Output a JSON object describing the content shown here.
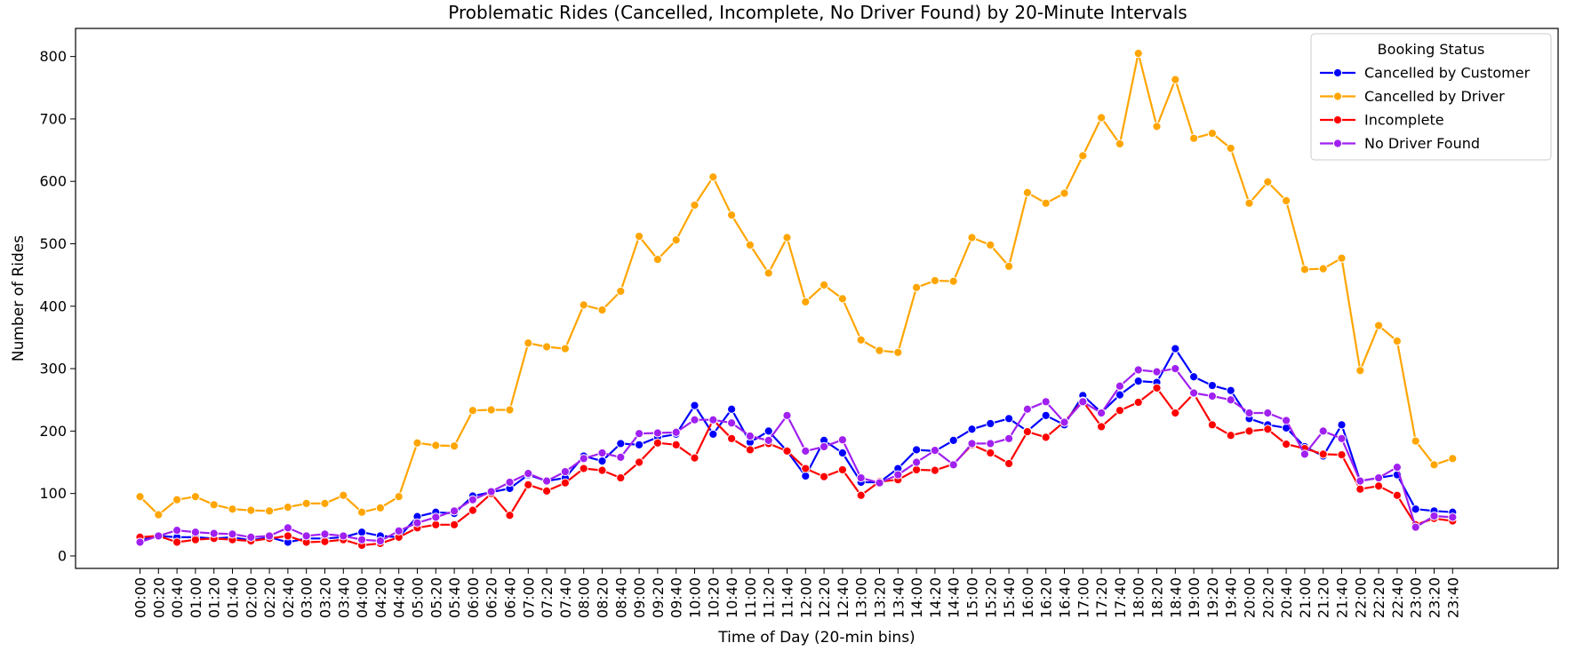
{
  "chart_data": {
    "type": "line",
    "title": "Problematic Rides (Cancelled, Incomplete, No Driver Found) by 20-Minute Intervals",
    "xlabel": "Time of Day (20-min bins)",
    "ylabel": "Number of Rides",
    "ylim": [
      -20,
      845
    ],
    "yticks": [
      0,
      100,
      200,
      300,
      400,
      500,
      600,
      700,
      800
    ],
    "grid": false,
    "legend": {
      "title": "Booking Status",
      "position": "top-right"
    },
    "categories": [
      "00:00",
      "00:20",
      "00:40",
      "01:00",
      "01:20",
      "01:40",
      "02:00",
      "02:20",
      "02:40",
      "03:00",
      "03:20",
      "03:40",
      "04:00",
      "04:20",
      "04:40",
      "05:00",
      "05:20",
      "05:40",
      "06:00",
      "06:20",
      "06:40",
      "07:00",
      "07:20",
      "07:40",
      "08:00",
      "08:20",
      "08:40",
      "09:00",
      "09:20",
      "09:40",
      "10:00",
      "10:20",
      "10:40",
      "11:00",
      "11:20",
      "11:40",
      "12:00",
      "12:20",
      "12:40",
      "13:00",
      "13:20",
      "13:40",
      "14:00",
      "14:20",
      "14:40",
      "15:00",
      "15:20",
      "15:40",
      "16:00",
      "16:20",
      "16:40",
      "17:00",
      "17:20",
      "17:40",
      "18:00",
      "18:20",
      "18:40",
      "19:00",
      "19:20",
      "19:40",
      "20:00",
      "20:20",
      "20:40",
      "21:00",
      "21:20",
      "21:40",
      "22:00",
      "22:20",
      "22:40",
      "23:00",
      "23:20",
      "23:40"
    ],
    "series": [
      {
        "name": "Cancelled by Customer",
        "color": "#0000ff",
        "values": [
          25,
          32,
          30,
          30,
          28,
          30,
          25,
          30,
          22,
          28,
          28,
          30,
          38,
          32,
          30,
          63,
          70,
          68,
          96,
          102,
          108,
          130,
          120,
          125,
          160,
          152,
          180,
          178,
          190,
          195,
          241,
          195,
          235,
          182,
          200,
          168,
          128,
          185,
          165,
          118,
          118,
          140,
          170,
          168,
          185,
          203,
          212,
          220,
          200,
          225,
          210,
          257,
          230,
          258,
          280,
          278,
          332,
          287,
          273,
          265,
          220,
          210,
          205,
          175,
          160,
          210,
          120,
          125,
          130,
          75,
          72,
          70
        ]
      },
      {
        "name": "Cancelled by Driver",
        "color": "#ffa500",
        "values": [
          95,
          66,
          90,
          95,
          82,
          75,
          73,
          72,
          78,
          84,
          84,
          97,
          70,
          77,
          95,
          181,
          177,
          176,
          233,
          234,
          234,
          341,
          335,
          332,
          402,
          394,
          424,
          512,
          475,
          506,
          562,
          607,
          546,
          498,
          453,
          510,
          407,
          434,
          412,
          346,
          329,
          326,
          430,
          441,
          440,
          510,
          498,
          464,
          582,
          565,
          581,
          641,
          702,
          660,
          805,
          688,
          763,
          669,
          677,
          653,
          565,
          599,
          569,
          459,
          460,
          477,
          297,
          369,
          344,
          184,
          146,
          156
        ]
      },
      {
        "name": "Incomplete",
        "color": "#ff0000",
        "values": [
          30,
          32,
          22,
          26,
          28,
          26,
          24,
          28,
          32,
          22,
          23,
          26,
          17,
          20,
          30,
          45,
          50,
          50,
          73,
          100,
          65,
          114,
          104,
          117,
          140,
          137,
          125,
          150,
          181,
          178,
          157,
          218,
          188,
          170,
          180,
          168,
          140,
          127,
          138,
          97,
          119,
          122,
          138,
          137,
          147,
          178,
          165,
          148,
          199,
          190,
          215,
          248,
          207,
          233,
          246,
          269,
          229,
          260,
          210,
          193,
          200,
          203,
          179,
          172,
          163,
          162,
          107,
          112,
          97,
          50,
          60,
          56
        ]
      },
      {
        "name": "No Driver Found",
        "color": "#a020f0",
        "values": [
          22,
          32,
          41,
          38,
          36,
          35,
          30,
          32,
          45,
          32,
          35,
          32,
          26,
          24,
          40,
          53,
          62,
          72,
          90,
          103,
          118,
          132,
          120,
          135,
          156,
          165,
          158,
          196,
          197,
          198,
          218,
          218,
          213,
          192,
          185,
          225,
          168,
          175,
          186,
          125,
          117,
          130,
          150,
          169,
          146,
          180,
          180,
          188,
          235,
          247,
          214,
          247,
          229,
          272,
          298,
          295,
          300,
          261,
          256,
          250,
          229,
          229,
          217,
          163,
          200,
          188,
          120,
          125,
          142,
          46,
          64,
          62
        ]
      }
    ]
  }
}
